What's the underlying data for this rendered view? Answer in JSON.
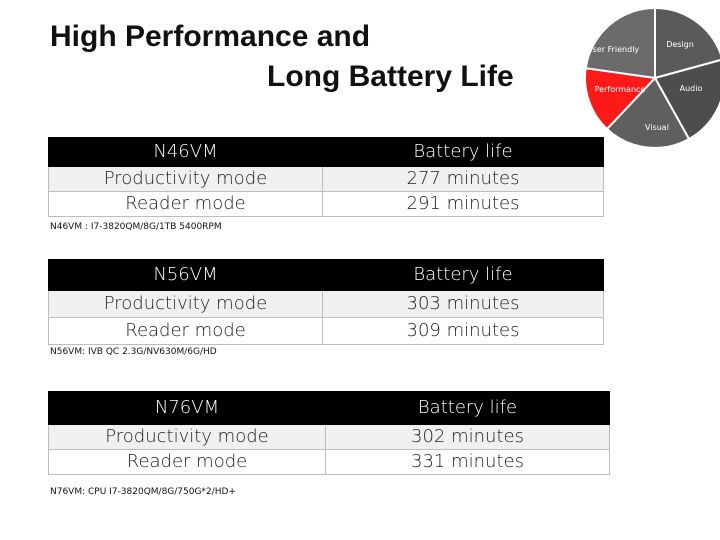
{
  "title": {
    "line1": "High Performance and",
    "line2": "Long Battery Life"
  },
  "wheel": {
    "segments": [
      {
        "label": "User Friendly",
        "color": "#6b6b6b"
      },
      {
        "label": "Design",
        "color": "#5a5a5a"
      },
      {
        "label": "Audio",
        "color": "#4d4d4d"
      },
      {
        "label": "Visual",
        "color": "#5f5f5f"
      },
      {
        "label": "Performance",
        "color": "#ff1a1a"
      }
    ]
  },
  "tables": [
    {
      "model": "N46VM",
      "col2_header": "Battery life",
      "rows": [
        {
          "mode": "Productivity mode",
          "value": "277 minutes"
        },
        {
          "mode": "Reader mode",
          "value": "291 minutes"
        }
      ],
      "note": "N46VM : I7-3820QM/8G/1TB 5400RPM"
    },
    {
      "model": "N56VM",
      "col2_header": "Battery life",
      "rows": [
        {
          "mode": "Productivity mode",
          "value": "303 minutes"
        },
        {
          "mode": "Reader mode",
          "value": "309 minutes"
        }
      ],
      "note": "N56VM: IVB QC 2.3G/NV630M/6G/HD"
    },
    {
      "model": "N76VM",
      "col2_header": "Battery life",
      "rows": [
        {
          "mode": "Productivity mode",
          "value": "302 minutes"
        },
        {
          "mode": "Reader mode",
          "value": "331 minutes"
        }
      ],
      "note": "N76VM: CPU I7-3820QM/8G/750G*2/HD+"
    }
  ]
}
